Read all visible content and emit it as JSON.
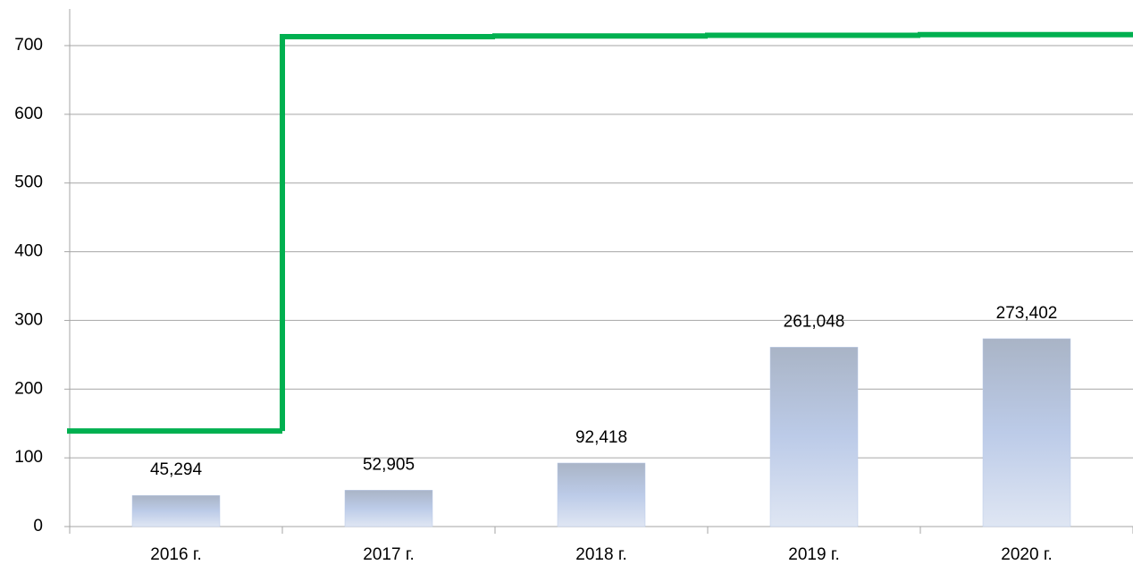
{
  "chart_data": {
    "type": "bar",
    "categories": [
      "2016 г.",
      "2017 г.",
      "2018 г.",
      "2019 г.",
      "2020 г."
    ],
    "series": [
      {
        "type": "bar",
        "color": "#b9c9e8",
        "values": [
          45.294,
          52.905,
          92.418,
          261.048,
          273.402
        ],
        "value_labels": [
          "45,294",
          "52,905",
          "92,418",
          "261,048",
          "273,402"
        ]
      },
      {
        "type": "line",
        "step": true,
        "color": "#00b050",
        "values": [
          139,
          713,
          714,
          715,
          716
        ]
      }
    ],
    "ylim": [
      0,
      700
    ],
    "yticks": [
      0,
      100,
      200,
      300,
      400,
      500,
      600,
      700
    ],
    "grid": true
  }
}
